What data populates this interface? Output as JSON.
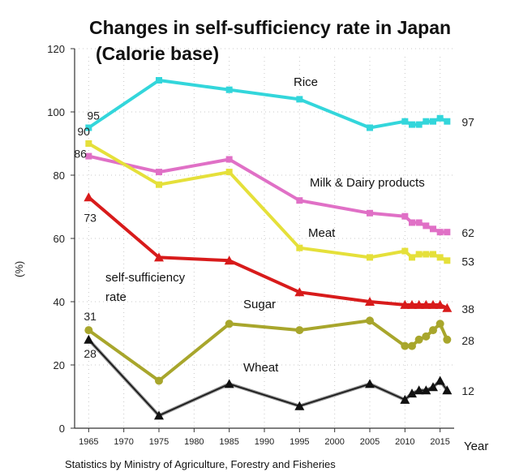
{
  "chart_data": {
    "type": "line",
    "title_line1": "Changes in self-sufficiency rate in Japan",
    "title_line2": "(Calorie base)",
    "ylabel": "(%)",
    "xlabel": "Year",
    "source": "Statistics by Ministry of Agriculture, Forestry and Fisheries",
    "xlim": [
      1963,
      2017
    ],
    "ylim": [
      0,
      120
    ],
    "yticks": [
      0,
      20,
      40,
      60,
      80,
      100,
      120
    ],
    "xticks": [
      1965,
      1970,
      1975,
      1980,
      1985,
      1990,
      1995,
      2000,
      2005,
      2010,
      2015
    ],
    "grid": true,
    "annotation": "self-sufficiency\nrate",
    "series": [
      {
        "name": "Rice",
        "color": "#33d6db",
        "marker": "square",
        "x": [
          1965,
          1975,
          1985,
          1995,
          2005,
          2010,
          2011,
          2012,
          2013,
          2014,
          2015,
          2016
        ],
        "y": [
          95,
          110,
          107,
          104,
          95,
          97,
          96,
          96,
          97,
          97,
          98,
          97
        ],
        "start_label": "95",
        "end_label": "97"
      },
      {
        "name": "Milk & Dairy products",
        "color": "#e070c6",
        "marker": "square",
        "x": [
          1965,
          1975,
          1985,
          1995,
          2005,
          2010,
          2011,
          2012,
          2013,
          2014,
          2015,
          2016
        ],
        "y": [
          86,
          81,
          85,
          72,
          68,
          67,
          65,
          65,
          64,
          63,
          62,
          62
        ],
        "start_label": "86",
        "end_label": "62"
      },
      {
        "name": "Meat",
        "color": "#e5e03a",
        "marker": "square",
        "x": [
          1965,
          1975,
          1985,
          1995,
          2005,
          2010,
          2011,
          2012,
          2013,
          2014,
          2015,
          2016
        ],
        "y": [
          90,
          77,
          81,
          57,
          54,
          56,
          54,
          55,
          55,
          55,
          54,
          53
        ],
        "start_label": "90",
        "end_label": "53"
      },
      {
        "name": "self-sufficiency rate",
        "color": "#d81b1b",
        "marker": "triangle",
        "x": [
          1965,
          1975,
          1985,
          1995,
          2005,
          2010,
          2011,
          2012,
          2013,
          2014,
          2015,
          2016
        ],
        "y": [
          73,
          54,
          53,
          43,
          40,
          39,
          39,
          39,
          39,
          39,
          39,
          38
        ],
        "start_label": "73",
        "end_label": "38"
      },
      {
        "name": "Sugar",
        "color": "#a8a62c",
        "marker": "circle",
        "x": [
          1965,
          1975,
          1985,
          1995,
          2005,
          2010,
          2011,
          2012,
          2013,
          2014,
          2015,
          2016
        ],
        "y": [
          31,
          15,
          33,
          31,
          34,
          26,
          26,
          28,
          29,
          31,
          33,
          28
        ],
        "start_label": "31",
        "end_label": "28"
      },
      {
        "name": "Wheat",
        "color": "#111111",
        "marker": "triangle",
        "x": [
          1965,
          1975,
          1985,
          1995,
          2005,
          2010,
          2011,
          2012,
          2013,
          2014,
          2015,
          2016
        ],
        "y": [
          28,
          4,
          14,
          7,
          14,
          9,
          11,
          12,
          12,
          13,
          15,
          12
        ],
        "start_label": "28",
        "end_label": "12"
      }
    ]
  }
}
